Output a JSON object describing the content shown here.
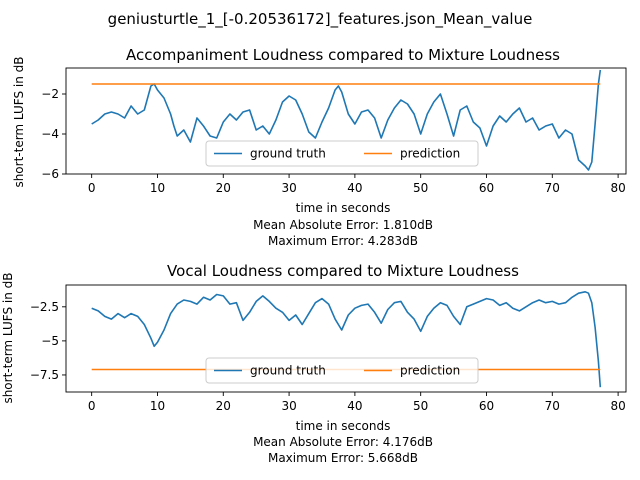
{
  "figure_title": "geniusturtle_1_[-0.20536172]_features.json_Mean_value",
  "colors": {
    "ground_truth": "#1f77b4",
    "prediction": "#ff7f0e",
    "axes": "#000000",
    "legend_border": "#cccccc"
  },
  "chart_data": [
    {
      "type": "line",
      "title": "Accompaniment Loudness compared to Mixture Loudness",
      "xlabel": "time in seconds",
      "ylabel": "short-term LUFS in dB",
      "xlim": [
        -3.9,
        81.2
      ],
      "ylim": [
        -6.0,
        -0.7
      ],
      "xticks": [
        0,
        10,
        20,
        30,
        40,
        50,
        60,
        70,
        80
      ],
      "yticks": [
        -6,
        -4,
        -2
      ],
      "grid": false,
      "legend": {
        "placement": "lower-center",
        "entries": [
          "ground truth",
          "prediction"
        ]
      },
      "stats": [
        "Mean Absolute Error: 1.810dB",
        "Maximum Error: 4.283dB"
      ],
      "series": [
        {
          "name": "ground truth",
          "x": [
            0,
            1,
            2,
            3,
            4,
            5,
            6,
            7,
            8,
            8.5,
            9,
            9.5,
            10,
            11,
            12,
            12.5,
            13,
            14,
            15,
            16,
            17,
            18,
            19,
            20,
            21,
            22,
            23,
            24,
            25,
            26,
            27,
            28,
            29,
            30,
            31,
            32,
            33,
            34,
            35,
            36,
            37,
            37.5,
            38,
            39,
            40,
            41,
            42,
            43,
            44,
            45,
            46,
            47,
            48,
            49,
            50,
            51,
            52,
            53,
            54,
            55,
            56,
            57,
            58,
            59,
            60,
            61,
            62,
            63,
            64,
            65,
            66,
            67,
            68,
            69,
            70,
            71,
            72,
            73,
            74,
            75,
            75.5,
            76,
            76.5,
            77,
            77.3
          ],
          "y": [
            -3.5,
            -3.3,
            -3.0,
            -2.9,
            -3.0,
            -3.2,
            -2.6,
            -3.0,
            -2.8,
            -2.2,
            -1.6,
            -1.5,
            -1.8,
            -2.2,
            -3.0,
            -3.6,
            -4.1,
            -3.8,
            -4.4,
            -3.2,
            -3.6,
            -4.1,
            -4.2,
            -3.4,
            -3.0,
            -3.3,
            -2.9,
            -2.8,
            -3.8,
            -3.6,
            -4.0,
            -3.3,
            -2.4,
            -2.1,
            -2.3,
            -3.0,
            -3.9,
            -4.2,
            -3.4,
            -2.7,
            -1.8,
            -1.6,
            -1.9,
            -3.0,
            -3.5,
            -2.9,
            -2.8,
            -3.2,
            -4.2,
            -3.3,
            -2.7,
            -2.3,
            -2.5,
            -3.0,
            -4.0,
            -3.0,
            -2.4,
            -2.0,
            -3.0,
            -4.1,
            -2.8,
            -2.6,
            -3.4,
            -3.7,
            -4.6,
            -3.6,
            -3.1,
            -3.4,
            -3.0,
            -2.7,
            -3.4,
            -3.2,
            -3.8,
            -3.6,
            -3.5,
            -4.2,
            -3.8,
            -4.0,
            -5.3,
            -5.6,
            -5.8,
            -5.4,
            -3.5,
            -1.5,
            -0.8
          ]
        },
        {
          "name": "prediction",
          "x": [
            0,
            77.3
          ],
          "y": [
            -1.5,
            -1.5
          ]
        }
      ]
    },
    {
      "type": "line",
      "title": "Vocal Loudness compared to Mixture Loudness",
      "xlabel": "time in seconds",
      "ylabel": "short-term LUFS in dB",
      "xlim": [
        -3.9,
        81.2
      ],
      "ylim": [
        -8.75,
        -0.9
      ],
      "xticks": [
        0,
        10,
        20,
        30,
        40,
        50,
        60,
        70,
        80
      ],
      "yticks": [
        -7.5,
        -5.0,
        -2.5
      ],
      "grid": false,
      "legend": {
        "placement": "lower-center",
        "entries": [
          "ground truth",
          "prediction"
        ]
      },
      "stats": [
        "Mean Absolute Error: 4.176dB",
        "Maximum Error: 5.668dB"
      ],
      "series": [
        {
          "name": "ground truth",
          "x": [
            0,
            1,
            2,
            3,
            4,
            5,
            6,
            7,
            8,
            9,
            9.5,
            10,
            11,
            12,
            13,
            14,
            15,
            16,
            17,
            18,
            19,
            20,
            21,
            22,
            23,
            24,
            25,
            26,
            27,
            28,
            29,
            30,
            31,
            32,
            33,
            34,
            35,
            36,
            37,
            38,
            39,
            40,
            41,
            42,
            43,
            44,
            45,
            46,
            47,
            48,
            49,
            50,
            51,
            52,
            53,
            54,
            55,
            56,
            57,
            58,
            59,
            60,
            61,
            62,
            63,
            64,
            65,
            66,
            67,
            68,
            69,
            70,
            71,
            72,
            73,
            74,
            75,
            75.5,
            76,
            76.5,
            77,
            77.3
          ],
          "y": [
            -2.6,
            -2.8,
            -3.2,
            -3.4,
            -3.0,
            -3.3,
            -3.0,
            -3.2,
            -3.8,
            -4.8,
            -5.4,
            -5.1,
            -4.2,
            -3.0,
            -2.3,
            -2.0,
            -2.1,
            -2.3,
            -1.8,
            -2.0,
            -1.6,
            -1.7,
            -2.3,
            -2.2,
            -3.5,
            -2.9,
            -2.1,
            -1.7,
            -2.1,
            -2.6,
            -2.9,
            -3.5,
            -3.1,
            -3.8,
            -3.0,
            -2.2,
            -1.9,
            -2.3,
            -3.4,
            -4.2,
            -3.1,
            -2.6,
            -2.4,
            -2.3,
            -2.9,
            -3.7,
            -2.7,
            -2.2,
            -2.1,
            -2.9,
            -3.4,
            -4.3,
            -3.2,
            -2.6,
            -2.2,
            -2.4,
            -3.2,
            -3.8,
            -2.5,
            -2.3,
            -2.1,
            -1.9,
            -2.0,
            -2.4,
            -2.2,
            -2.6,
            -2.8,
            -2.5,
            -2.2,
            -2.0,
            -2.2,
            -2.1,
            -2.3,
            -2.2,
            -1.8,
            -1.5,
            -1.4,
            -1.5,
            -2.2,
            -4.0,
            -6.5,
            -8.4
          ]
        },
        {
          "name": "prediction",
          "x": [
            0,
            77.3
          ],
          "y": [
            -7.1,
            -7.1
          ]
        }
      ]
    }
  ]
}
